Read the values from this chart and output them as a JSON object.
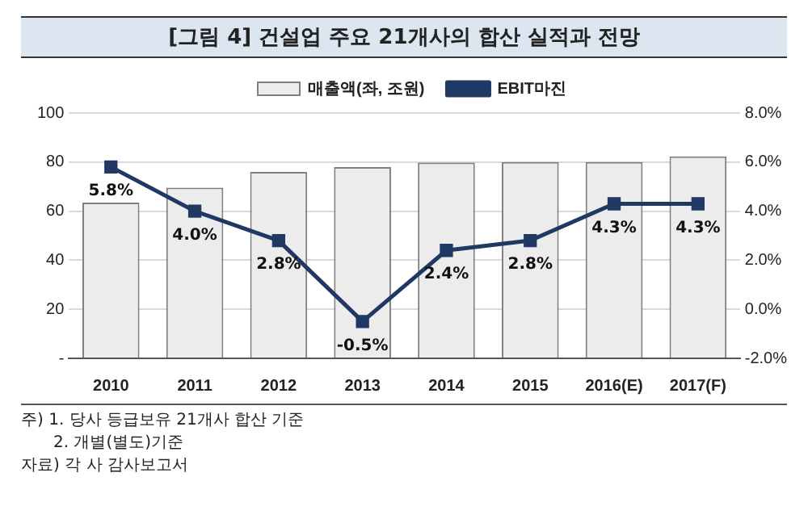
{
  "chart_data": {
    "type": "bar",
    "title": "[그림 4] 건설업 주요 21개사의 합산 실적과 전망",
    "categories": [
      "2010",
      "2011",
      "2012",
      "2013",
      "2014",
      "2015",
      "2016(E)",
      "2017(F)"
    ],
    "series": [
      {
        "name": "매출액(좌, 조원)",
        "color": "#ececec",
        "values": [
          63.5,
          69.6,
          76,
          78,
          79.8,
          80,
          80,
          82.3
        ]
      },
      {
        "name": "EBIT마진",
        "type": "line",
        "axis": "y2",
        "color": "#1f3864",
        "values": [
          5.8,
          4.0,
          2.8,
          -0.5,
          2.4,
          2.8,
          4.3,
          4.3
        ],
        "value_labels": [
          "5.8%",
          "4.0%",
          "2.8%",
          "-0.5%",
          "2.4%",
          "2.8%",
          "4.3%",
          "4.3%"
        ]
      }
    ],
    "ylim": [
      0,
      100
    ],
    "yticks": [
      {
        "value": 0,
        "label": "-"
      },
      20,
      40,
      60,
      80,
      100
    ],
    "y2lim": [
      -2,
      8
    ],
    "y2ticks": [
      {
        "value": -2,
        "label": "-2.0%"
      },
      {
        "value": 0,
        "label": "0.0%"
      },
      {
        "value": 2,
        "label": "2.0%"
      },
      {
        "value": 4,
        "label": "4.0%"
      },
      {
        "value": 6,
        "label": "6.0%"
      },
      {
        "value": 8,
        "label": "8.0%"
      }
    ],
    "grid": "y",
    "legend": "top",
    "marker": "square",
    "line_style": "solid",
    "annotations": [
      "주) 1. 당사 등급보유 21개사 합산 기준",
      "2. 개별(별도)기준",
      "자료) 각 사 감사보고서"
    ]
  }
}
